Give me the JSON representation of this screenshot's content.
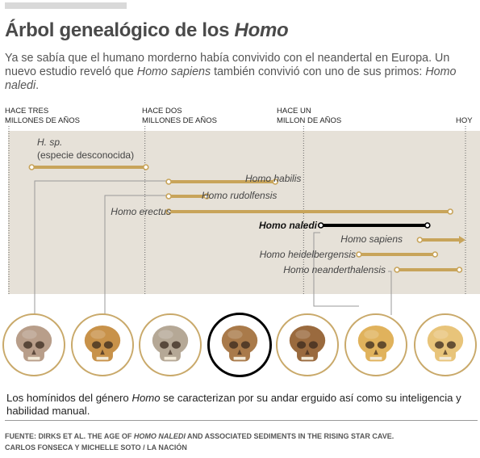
{
  "header": {
    "title_prefix": "Árbol genealógico de los ",
    "title_emph": "Homo"
  },
  "intro": {
    "part1": "Ya se sabía que el humano morderno había convivido con el neandertal en Europa. Un nuevo estudio reveló que ",
    "emph1": "Homo sapiens",
    "part2": " también convivió con uno de sus primos: ",
    "emph2": "Homo naledi",
    "part3": "."
  },
  "eras": [
    {
      "line1": "HACE TRES",
      "line2": "MILLONES DE AÑOS"
    },
    {
      "line1": "HACE DOS",
      "line2": "MILLONES DE AÑOS"
    },
    {
      "line1": "HACE UN",
      "line2": "MILLON DE AÑOS"
    },
    {
      "line1": "HOY",
      "line2": ""
    }
  ],
  "species": [
    {
      "name": "H. sp.",
      "note": "(especie desconocida)",
      "start": 2.85,
      "end": 2.1,
      "focus": false,
      "arrow": false
    },
    {
      "name": "Homo habilis",
      "note": "",
      "start": 1.95,
      "end": 1.25,
      "focus": false,
      "arrow": false
    },
    {
      "name": "Homo rudolfensis",
      "note": "",
      "start": 1.95,
      "end": 1.7,
      "focus": false,
      "arrow": false
    },
    {
      "name": "Homo erectus",
      "note": "",
      "start": 1.95,
      "end": 0.1,
      "focus": false,
      "arrow": false
    },
    {
      "name": "Homo naledi",
      "note": "",
      "start": 0.95,
      "end": 0.25,
      "focus": true,
      "arrow": false
    },
    {
      "name": "Homo sapiens",
      "note": "",
      "start": 0.3,
      "end": 0.0,
      "focus": false,
      "arrow": true
    },
    {
      "name": "Homo heidelbergensis",
      "note": "",
      "start": 0.7,
      "end": 0.2,
      "focus": false,
      "arrow": false
    },
    {
      "name": "Homo neanderthalensis",
      "note": "",
      "start": 0.45,
      "end": 0.04,
      "focus": false,
      "arrow": false
    }
  ],
  "skulls": [
    {
      "icon": "skull-hsp-icon",
      "tone": "#b89e8a",
      "focus": false
    },
    {
      "icon": "skull-habilis-icon",
      "tone": "#c8924a",
      "focus": false
    },
    {
      "icon": "skull-erectus-icon",
      "tone": "#b5a896",
      "focus": false
    },
    {
      "icon": "skull-naledi-icon",
      "tone": "#a97a4a",
      "focus": true
    },
    {
      "icon": "skull-heidelbergensis-icon",
      "tone": "#9a6a3e",
      "focus": false
    },
    {
      "icon": "skull-neanderthalensis-icon",
      "tone": "#e0b25c",
      "focus": false
    },
    {
      "icon": "skull-sapiens-icon",
      "tone": "#e8c47a",
      "focus": false
    }
  ],
  "footnote": {
    "part1": "Los homínidos del género ",
    "emph": "Homo",
    "part2": " se caracterizan por su andar erguido así como su inteligencia y habilidad manual."
  },
  "source": {
    "line1_prefix": "FUENTE: DIRKS ET AL. THE AGE OF ",
    "line1_emph": "HOMO NALEDI",
    "line1_suffix": " AND ASSOCIATED SEDIMENTS IN THE RISING STAR CAVE.",
    "line2": "CARLOS FONSECA Y MICHELLE SOTO / LA NACIÓN"
  },
  "colors": {
    "panel": "#e6e1d8",
    "bar": "#c8a45a",
    "focus_bar": "#000000",
    "connector": "#999999"
  }
}
